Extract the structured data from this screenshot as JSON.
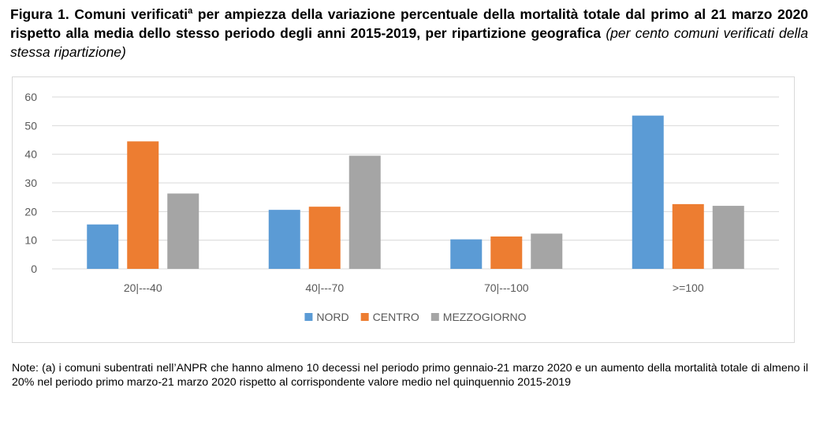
{
  "title": {
    "prefix": "Figura 1. Comuni verificati",
    "superscript": "a",
    "main": " per ampiezza della variazione percentuale della mortalità totale dal primo al 21 marzo 2020 rispetto alla media dello stesso periodo degli anni 2015-2019, per ripartizione geografica",
    "subtitle": "(per cento comuni verificati della stessa ripartizione)"
  },
  "note": "Note: (a) i comuni subentrati nell’ANPR che hanno almeno 10 decessi nel periodo primo gennaio-21 marzo 2020 e un aumento della mortalità totale di almeno il 20% nel periodo primo marzo-21 marzo 2020 rispetto al corrispondente valore medio nel quinquennio 2015-2019",
  "chart_data": {
    "type": "bar",
    "title": "",
    "xlabel": "",
    "ylabel": "",
    "categories": [
      "20|---40",
      "40|---70",
      "70|---100",
      ">=100"
    ],
    "series": [
      {
        "name": "NORD",
        "color": "#5b9bd5",
        "values": [
          15.5,
          20.6,
          10.3,
          53.5
        ]
      },
      {
        "name": "CENTRO",
        "color": "#ed7d31",
        "values": [
          44.5,
          21.7,
          11.3,
          22.6
        ]
      },
      {
        "name": "MEZZOGIORNO",
        "color": "#a5a5a5",
        "values": [
          26.3,
          39.5,
          12.3,
          22.0
        ]
      }
    ],
    "ylim": [
      0,
      60
    ],
    "yticks": [
      0,
      10,
      20,
      30,
      40,
      50,
      60
    ],
    "grid": true,
    "legend": "bottom-center"
  }
}
